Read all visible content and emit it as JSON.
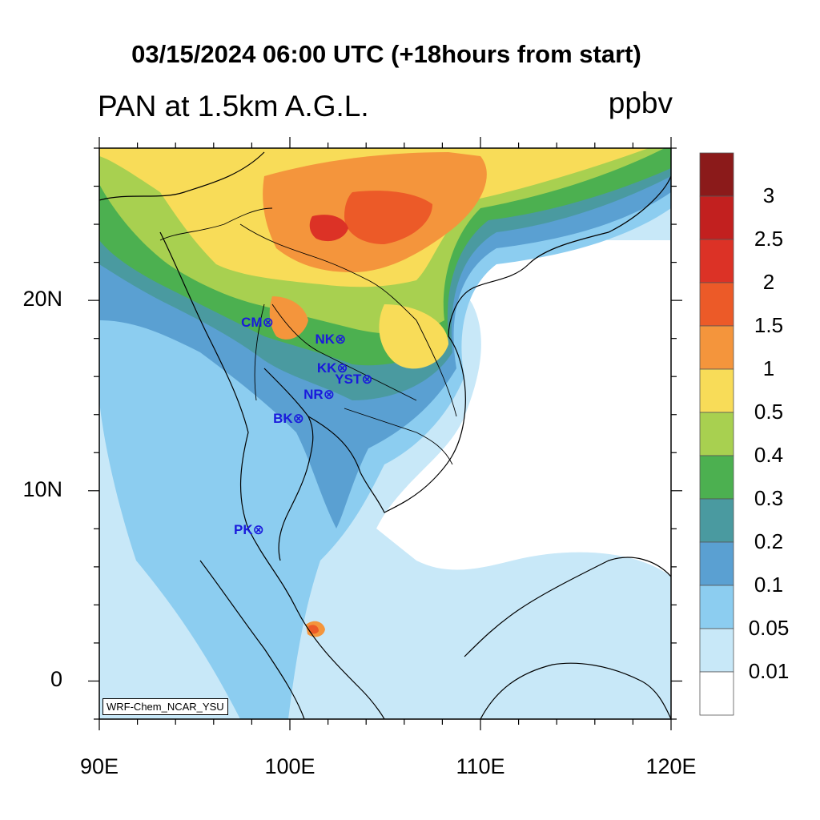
{
  "header": {
    "title": "03/15/2024 06:00 UTC (+18hours from start)",
    "variable": "PAN at 1.5km A.G.L.",
    "units": "ppbv"
  },
  "axes": {
    "lat_labels": [
      "20N",
      "10N",
      "0"
    ],
    "lon_labels": [
      "90E",
      "100E",
      "110E",
      "120E"
    ],
    "lat_values": [
      20,
      10,
      0
    ],
    "lon_values": [
      90,
      100,
      110,
      120
    ],
    "lon_range": [
      90,
      120
    ],
    "lat_range": [
      -2,
      28
    ]
  },
  "colorbar": {
    "labels": [
      "3",
      "2.5",
      "2",
      "1.5",
      "1",
      "0.5",
      "0.4",
      "0.3",
      "0.2",
      "0.1",
      "0.05",
      "0.01"
    ],
    "colors_top_to_bottom": [
      "#8b1a1a",
      "#c2201f",
      "#dc3226",
      "#ec5a28",
      "#f4953c",
      "#f8dc58",
      "#a8d050",
      "#4cb050",
      "#4a9aa0",
      "#5aa0d2",
      "#8ccdf0",
      "#c8e8f8",
      "#ffffff"
    ]
  },
  "stations": [
    {
      "code": "CM",
      "lon": 98.9,
      "lat": 18.8
    },
    {
      "code": "NK",
      "lon": 102.7,
      "lat": 17.9
    },
    {
      "code": "KK",
      "lon": 102.8,
      "lat": 16.4
    },
    {
      "code": "YST",
      "lon": 104.1,
      "lat": 15.8
    },
    {
      "code": "NR",
      "lon": 102.1,
      "lat": 15.0
    },
    {
      "code": "BK",
      "lon": 100.5,
      "lat": 13.75
    },
    {
      "code": "PK",
      "lon": 98.4,
      "lat": 7.9
    }
  ],
  "credit": "WRF-Chem_NCAR_YSU",
  "colors": {
    "station": "#1a1adc",
    "background_field": "#c8e8f8"
  }
}
